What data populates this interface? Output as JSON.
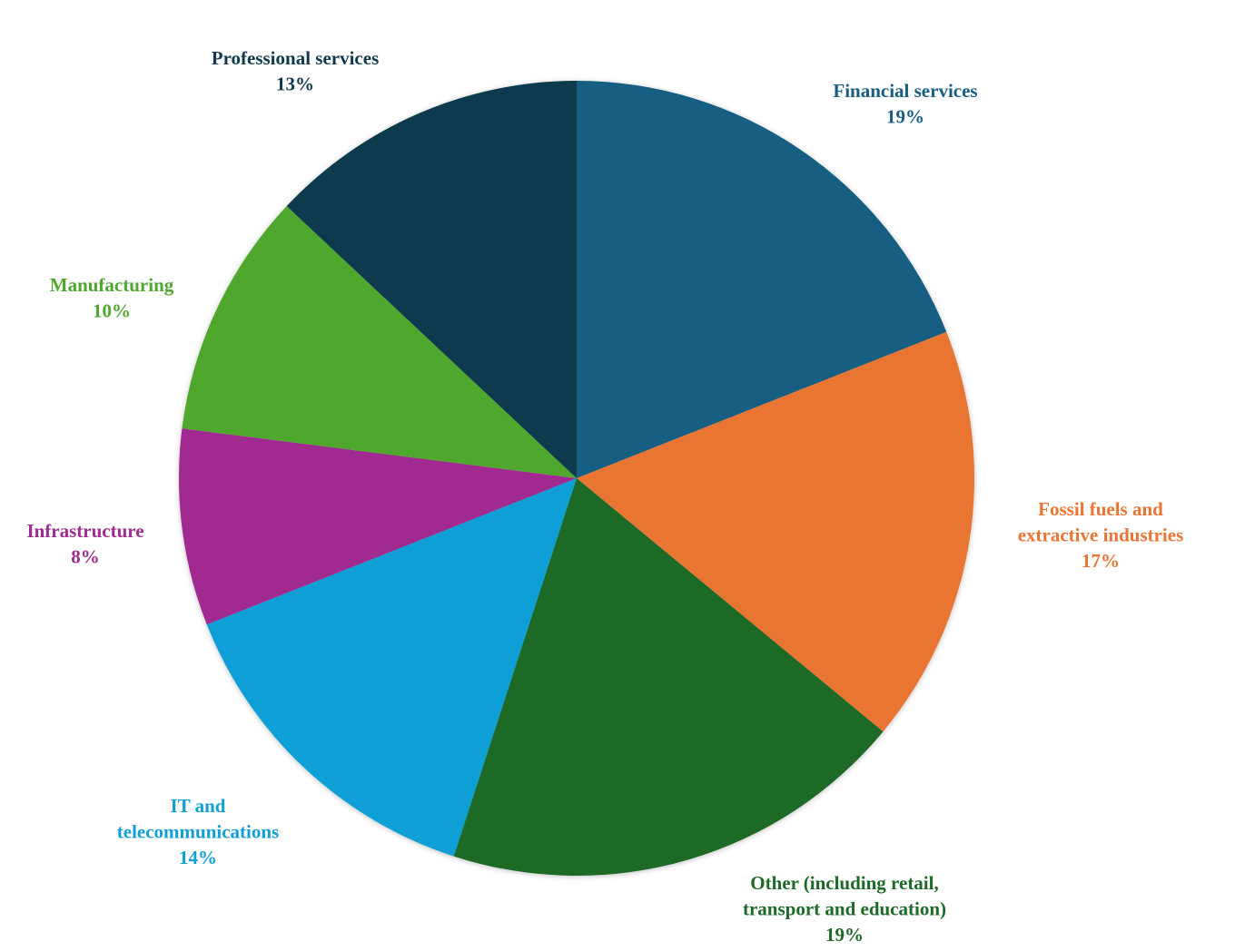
{
  "chart_data": {
    "type": "pie",
    "start": "top",
    "direction": "clockwise",
    "slices": [
      {
        "label": [
          "Financial services"
        ],
        "value": 19,
        "display": "19%",
        "color": "#175e82"
      },
      {
        "label": [
          "Fossil fuels and",
          "extractive industries"
        ],
        "value": 17,
        "display": "17%",
        "color": "#e97433"
      },
      {
        "label": [
          "Other (including retail,",
          "transport and education)"
        ],
        "value": 19,
        "display": "19%",
        "color": "#1d6a27"
      },
      {
        "label": [
          "IT and",
          "telecommunications"
        ],
        "value": 14,
        "display": "14%",
        "color": "#109fd6"
      },
      {
        "label": [
          "Infrastructure"
        ],
        "value": 8,
        "display": "8%",
        "color": "#a02b90"
      },
      {
        "label": [
          "Manufacturing"
        ],
        "value": 10,
        "display": "10%",
        "color": "#4fa72f"
      },
      {
        "label": [
          "Professional services"
        ],
        "value": 13,
        "display": "13%",
        "color": "#0f3a4e"
      }
    ]
  }
}
